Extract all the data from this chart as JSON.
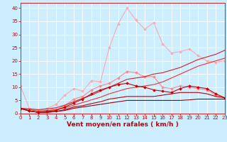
{
  "x": [
    0,
    1,
    2,
    3,
    4,
    5,
    6,
    7,
    8,
    9,
    10,
    11,
    12,
    13,
    14,
    15,
    16,
    17,
    18,
    19,
    20,
    21,
    22,
    23
  ],
  "series": [
    {
      "name": "line1_lightpink_spiky",
      "color": "#ffaaaa",
      "lw": 0.8,
      "marker": "D",
      "markersize": 1.8,
      "y": [
        10.5,
        2.0,
        1.0,
        2.0,
        3.5,
        7.0,
        9.5,
        8.5,
        12.5,
        12.0,
        25.0,
        34.0,
        40.0,
        35.5,
        32.0,
        34.5,
        26.5,
        23.0,
        23.5,
        24.5,
        22.0,
        20.0,
        19.5,
        20.0
      ]
    },
    {
      "name": "line2_pink_medium",
      "color": "#ff8888",
      "lw": 0.8,
      "marker": "D",
      "markersize": 1.8,
      "y": [
        2.0,
        1.0,
        0.5,
        1.0,
        1.5,
        3.0,
        5.5,
        6.5,
        9.0,
        10.5,
        11.5,
        13.5,
        16.0,
        15.5,
        14.0,
        14.0,
        10.0,
        9.5,
        10.5,
        10.0,
        9.5,
        9.0,
        7.0,
        6.0
      ]
    },
    {
      "name": "line3_red_linear_upper",
      "color": "#cc2222",
      "lw": 0.8,
      "marker": null,
      "markersize": 0,
      "y": [
        2.0,
        1.8,
        1.5,
        1.8,
        2.2,
        3.2,
        4.5,
        5.8,
        7.0,
        8.5,
        10.0,
        11.5,
        13.0,
        13.5,
        14.0,
        15.0,
        15.5,
        16.5,
        17.5,
        19.0,
        20.5,
        21.5,
        22.5,
        24.0
      ]
    },
    {
      "name": "line4_red_linear_lower",
      "color": "#ee3333",
      "lw": 0.8,
      "marker": null,
      "markersize": 0,
      "y": [
        2.0,
        1.5,
        1.0,
        1.2,
        1.5,
        2.2,
        3.2,
        4.2,
        5.2,
        6.2,
        7.5,
        8.5,
        9.5,
        10.0,
        10.5,
        11.0,
        12.0,
        13.5,
        15.0,
        16.5,
        18.0,
        19.0,
        20.0,
        21.0
      ]
    },
    {
      "name": "line5_red_markers",
      "color": "#cc0000",
      "lw": 0.8,
      "marker": "D",
      "markersize": 1.8,
      "y": [
        2.0,
        1.0,
        0.5,
        0.8,
        1.2,
        2.5,
        4.0,
        5.5,
        7.5,
        9.0,
        10.0,
        11.0,
        11.5,
        10.5,
        10.0,
        9.0,
        8.5,
        8.0,
        9.5,
        10.5,
        10.0,
        9.5,
        7.5,
        6.0
      ]
    },
    {
      "name": "line6_darkred_flat",
      "color": "#990000",
      "lw": 0.8,
      "marker": null,
      "markersize": 0,
      "y": [
        2.0,
        1.0,
        0.5,
        0.5,
        0.8,
        1.2,
        2.0,
        2.5,
        3.0,
        3.5,
        4.0,
        4.5,
        5.0,
        5.0,
        5.0,
        5.0,
        5.0,
        5.0,
        5.0,
        5.2,
        5.5,
        5.5,
        5.5,
        5.5
      ]
    },
    {
      "name": "line7_darkred_flat2",
      "color": "#bb0000",
      "lw": 0.8,
      "marker": null,
      "markersize": 0,
      "y": [
        2.0,
        1.0,
        0.5,
        0.5,
        0.8,
        1.5,
        2.5,
        3.0,
        3.8,
        4.5,
        5.5,
        6.0,
        6.5,
        6.5,
        6.5,
        6.5,
        7.0,
        7.5,
        8.0,
        8.0,
        8.0,
        7.5,
        6.5,
        6.0
      ]
    }
  ],
  "xlabel": "Vent moyen/en rafales ( km/h )",
  "xlim": [
    0,
    23
  ],
  "ylim": [
    0,
    42
  ],
  "yticks": [
    0,
    5,
    10,
    15,
    20,
    25,
    30,
    35,
    40
  ],
  "xticks": [
    0,
    1,
    2,
    3,
    4,
    5,
    6,
    7,
    8,
    9,
    10,
    11,
    12,
    13,
    14,
    15,
    16,
    17,
    18,
    19,
    20,
    21,
    22,
    23
  ],
  "bg_color": "#cceeff",
  "grid_color": "#ffffff",
  "axis_color": "#cc0000",
  "xlabel_color": "#cc0000",
  "tick_color": "#cc0000",
  "xlabel_fontsize": 6.5,
  "tick_fontsize": 5.0
}
